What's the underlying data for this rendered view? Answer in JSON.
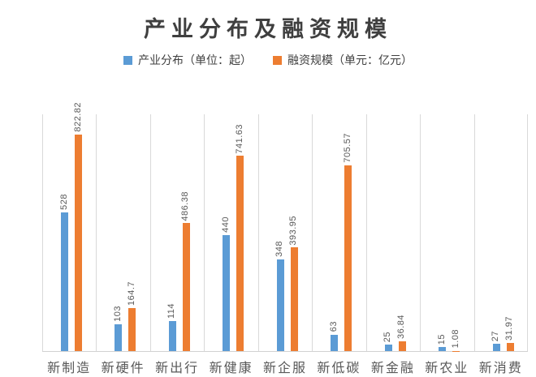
{
  "title": "产业分布及融资规模",
  "legend": [
    {
      "label": "产业分布（单位：起）",
      "color": "#5B9BD5"
    },
    {
      "label": "融资规模（单元：亿元）",
      "color": "#ED7D31"
    }
  ],
  "colors": {
    "series_blue": "#5B9BD5",
    "series_orange": "#ED7D31",
    "gridline": "#d9d9d9",
    "axis_line": "#d2d2d2",
    "title_text": "#3f3f3f",
    "label_text": "#595959"
  },
  "chart_data": {
    "type": "bar",
    "title": "产业分布及融资规模",
    "categories": [
      "新制造",
      "新硬件",
      "新出行",
      "新健康",
      "新企服",
      "新低碳",
      "新金融",
      "新农业",
      "新消费"
    ],
    "series": [
      {
        "name": "产业分布（单位：起）",
        "color": "#5B9BD5",
        "values": [
          528,
          103,
          114,
          440,
          348,
          63,
          25,
          15,
          27
        ]
      },
      {
        "name": "融资规模（单元：亿元）",
        "color": "#ED7D31",
        "values": [
          822.82,
          164.7,
          486.38,
          741.63,
          393.95,
          705.57,
          36.84,
          1.08,
          31.97
        ]
      }
    ],
    "xlabel": "",
    "ylabel": "",
    "ylim": [
      0,
      900
    ],
    "y_axis_visible": false,
    "grid": "vertical-category-separators",
    "legend_position": "top",
    "data_labels": true,
    "data_label_orientation": "vertical"
  }
}
